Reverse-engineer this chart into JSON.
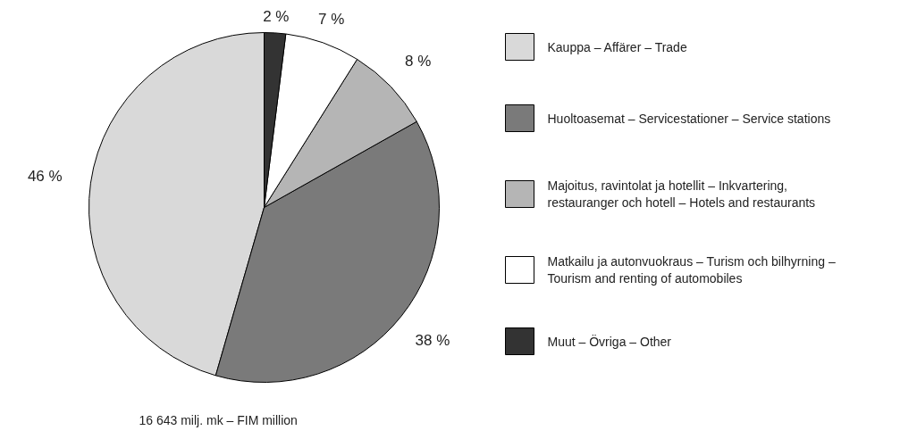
{
  "chart_data": {
    "type": "pie",
    "categories": [
      "Kauppa – Affärer – Trade",
      "Huoltoasemat – Servicestationer – Service stations",
      "Majoitus, ravintolat ja hotellit – Inkvartering, restauranger och hotell – Hotels and restaurants",
      "Matkailu ja autonvuokraus – Turism och bilhyrning – Tourism and renting of automobiles",
      "Muut – Övriga – Other"
    ],
    "values": [
      46,
      38,
      8,
      7,
      2
    ],
    "colors": [
      "#d9d9d9",
      "#7a7a7a",
      "#b5b5b5",
      "#ffffff",
      "#333333"
    ],
    "value_labels": [
      "46 %",
      "38 %",
      "8 %",
      "7 %",
      "2 %"
    ],
    "legend": "right",
    "annotations": [
      "16 643 milj. mk – FIM million"
    ]
  }
}
